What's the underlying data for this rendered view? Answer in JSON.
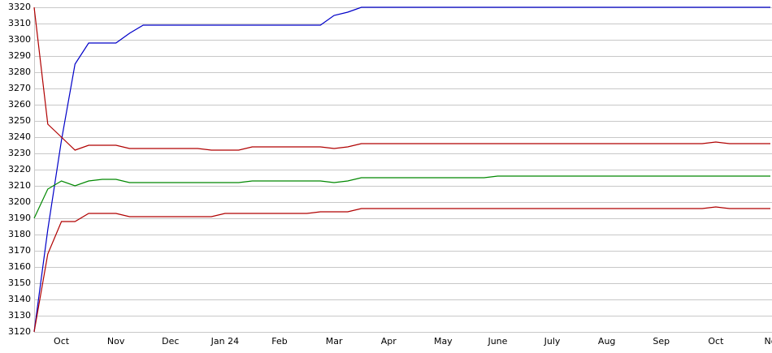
{
  "chart_data": {
    "type": "line",
    "categories": [
      null,
      null,
      "Oct",
      null,
      null,
      null,
      "Nov",
      null,
      null,
      null,
      "Dec",
      null,
      null,
      null,
      "Jan 24",
      null,
      null,
      null,
      "Feb",
      null,
      null,
      null,
      "Mar",
      null,
      null,
      null,
      "Apr",
      null,
      null,
      null,
      "May",
      null,
      null,
      null,
      "June",
      null,
      null,
      null,
      "July",
      null,
      null,
      null,
      "Aug",
      null,
      null,
      null,
      "Sep",
      null,
      null,
      null,
      "Oct",
      null,
      null,
      null,
      "No"
    ],
    "series": [
      {
        "color": "#0000c8",
        "values": [
          3120,
          3183,
          3238,
          3285,
          3298,
          3298,
          3298,
          3304,
          3309,
          3309,
          3309,
          3309,
          3309,
          3309,
          3309,
          3309,
          3309,
          3309,
          3309,
          3309,
          3309,
          3309,
          3315,
          3317,
          3320,
          3320,
          3320,
          3320,
          3320,
          3320,
          3320,
          3320,
          3320,
          3320,
          3320,
          3320,
          3320,
          3320,
          3320,
          3320,
          3320,
          3320,
          3320,
          3320,
          3320,
          3320,
          3320,
          3320,
          3320,
          3320,
          3320,
          3320,
          3320,
          3320,
          3320
        ]
      },
      {
        "color": "#b00000",
        "values": [
          3320,
          3248,
          3240,
          3232,
          3235,
          3235,
          3235,
          3233,
          3233,
          3233,
          3233,
          3233,
          3233,
          3232,
          3232,
          3232,
          3234,
          3234,
          3234,
          3234,
          3234,
          3234,
          3233,
          3234,
          3236,
          3236,
          3236,
          3236,
          3236,
          3236,
          3236,
          3236,
          3236,
          3236,
          3236,
          3236,
          3236,
          3236,
          3236,
          3236,
          3236,
          3236,
          3236,
          3236,
          3236,
          3236,
          3236,
          3236,
          3236,
          3236,
          3237,
          3236,
          3236,
          3236,
          3236
        ]
      },
      {
        "color": "#008800",
        "values": [
          3190,
          3208,
          3213,
          3210,
          3213,
          3214,
          3214,
          3212,
          3212,
          3212,
          3212,
          3212,
          3212,
          3212,
          3212,
          3212,
          3213,
          3213,
          3213,
          3213,
          3213,
          3213,
          3212,
          3213,
          3215,
          3215,
          3215,
          3215,
          3215,
          3215,
          3215,
          3215,
          3215,
          3215,
          3216,
          3216,
          3216,
          3216,
          3216,
          3216,
          3216,
          3216,
          3216,
          3216,
          3216,
          3216,
          3216,
          3216,
          3216,
          3216,
          3216,
          3216,
          3216,
          3216,
          3216
        ]
      },
      {
        "color": "#b00000",
        "values": [
          3120,
          3168,
          3188,
          3188,
          3193,
          3193,
          3193,
          3191,
          3191,
          3191,
          3191,
          3191,
          3191,
          3191,
          3193,
          3193,
          3193,
          3193,
          3193,
          3193,
          3193,
          3194,
          3194,
          3194,
          3196,
          3196,
          3196,
          3196,
          3196,
          3196,
          3196,
          3196,
          3196,
          3196,
          3196,
          3196,
          3196,
          3196,
          3196,
          3196,
          3196,
          3196,
          3196,
          3196,
          3196,
          3196,
          3196,
          3196,
          3196,
          3196,
          3197,
          3196,
          3196,
          3196,
          3196
        ]
      }
    ],
    "ylim": [
      3120,
      3320
    ],
    "yticks": [
      3120,
      3130,
      3140,
      3150,
      3160,
      3170,
      3180,
      3190,
      3200,
      3210,
      3220,
      3230,
      3240,
      3250,
      3260,
      3270,
      3280,
      3290,
      3300,
      3310,
      3320
    ],
    "grid": true
  }
}
